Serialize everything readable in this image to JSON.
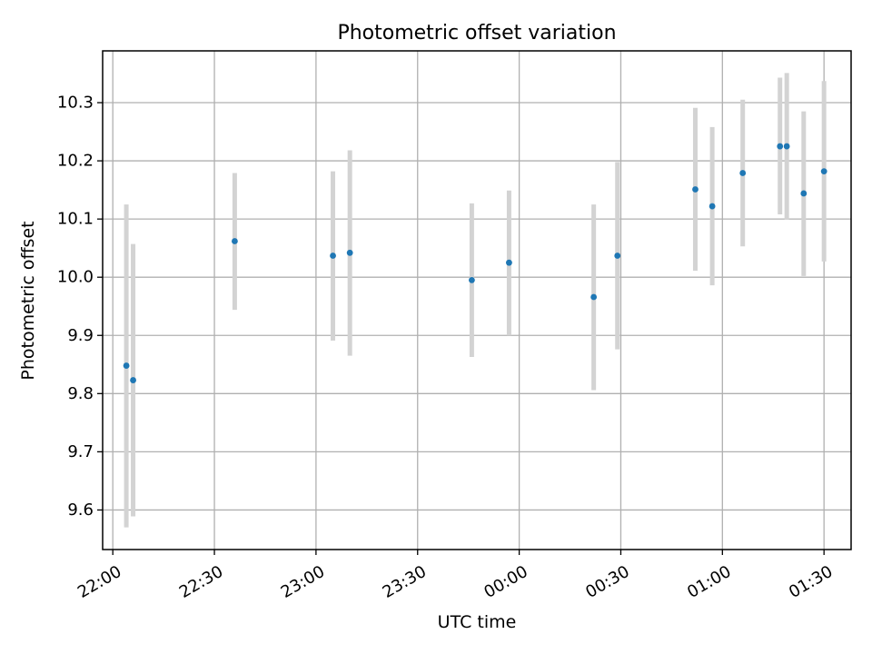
{
  "chart_data": {
    "type": "scatter",
    "title": "Photometric offset variation",
    "xlabel": "UTC time",
    "ylabel": "Photometric offset",
    "xlim": [
      "21:57",
      "01:38"
    ],
    "ylim": [
      9.532,
      10.389
    ],
    "grid": true,
    "x_ticks": [
      "22:00",
      "22:30",
      "23:00",
      "23:30",
      "00:00",
      "00:30",
      "01:00",
      "01:30"
    ],
    "y_ticks": [
      "9.6",
      "9.7",
      "9.8",
      "9.9",
      "10.0",
      "10.1",
      "10.2",
      "10.3"
    ],
    "series": [
      {
        "points": [
          {
            "x": "22:04",
            "y": 9.848,
            "yerr_low": 9.57,
            "yerr_high": 10.125
          },
          {
            "x": "22:06",
            "y": 9.823,
            "yerr_low": 9.589,
            "yerr_high": 10.057
          },
          {
            "x": "22:36",
            "y": 10.062,
            "yerr_low": 9.944,
            "yerr_high": 10.179
          },
          {
            "x": "23:05",
            "y": 10.037,
            "yerr_low": 9.891,
            "yerr_high": 10.182
          },
          {
            "x": "23:10",
            "y": 10.042,
            "yerr_low": 9.865,
            "yerr_high": 10.218
          },
          {
            "x": "23:46",
            "y": 9.995,
            "yerr_low": 9.863,
            "yerr_high": 10.127
          },
          {
            "x": "23:57",
            "y": 10.025,
            "yerr_low": 9.9,
            "yerr_high": 10.149
          },
          {
            "x": "00:22",
            "y": 9.966,
            "yerr_low": 9.806,
            "yerr_high": 10.125
          },
          {
            "x": "00:29",
            "y": 10.037,
            "yerr_low": 9.876,
            "yerr_high": 10.198
          },
          {
            "x": "00:52",
            "y": 10.151,
            "yerr_low": 10.011,
            "yerr_high": 10.291
          },
          {
            "x": "00:57",
            "y": 10.122,
            "yerr_low": 9.986,
            "yerr_high": 10.258
          },
          {
            "x": "01:06",
            "y": 10.179,
            "yerr_low": 10.053,
            "yerr_high": 10.305
          },
          {
            "x": "01:17",
            "y": 10.225,
            "yerr_low": 10.108,
            "yerr_high": 10.343
          },
          {
            "x": "01:19",
            "y": 10.225,
            "yerr_low": 10.099,
            "yerr_high": 10.351
          },
          {
            "x": "01:24",
            "y": 10.144,
            "yerr_low": 10.002,
            "yerr_high": 10.285
          },
          {
            "x": "01:30",
            "y": 10.182,
            "yerr_low": 10.027,
            "yerr_high": 10.337
          }
        ]
      }
    ],
    "colors": {
      "marker": "#1f77b4",
      "errorbar": "#d3d3d3",
      "grid": "#b0b0b0",
      "axes": "#000000"
    }
  }
}
